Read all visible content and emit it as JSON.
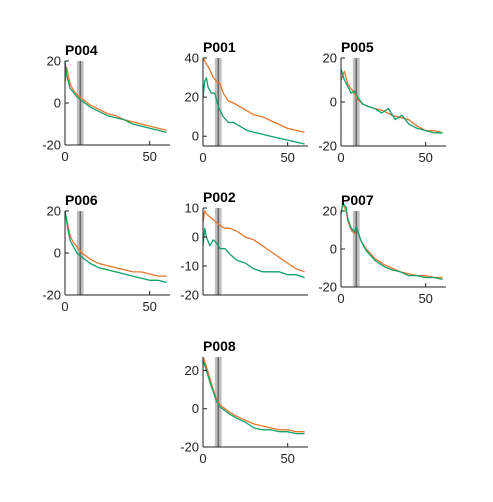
{
  "colors": {
    "series_a": "#E8772E",
    "series_b": "#0EA06A",
    "shade": "#B3B3B3",
    "center_line": "#555555"
  },
  "chart_data": [
    {
      "type": "line",
      "title": "P004",
      "xlim": [
        0,
        62
      ],
      "ylim": [
        -20,
        20
      ],
      "xticks": [
        0,
        50
      ],
      "yticks": [
        -20,
        0,
        20
      ],
      "shade": [
        7,
        11
      ],
      "center": 9,
      "series": [
        {
          "values": [
            [
              0,
              10
            ],
            [
              1,
              17
            ],
            [
              2,
              13
            ],
            [
              3,
              9
            ],
            [
              5,
              6
            ],
            [
              7,
              4
            ],
            [
              10,
              2
            ],
            [
              15,
              -1
            ],
            [
              20,
              -3
            ],
            [
              25,
              -5
            ],
            [
              30,
              -6
            ],
            [
              35,
              -8
            ],
            [
              40,
              -9
            ],
            [
              45,
              -10
            ],
            [
              50,
              -11
            ],
            [
              55,
              -12
            ],
            [
              60,
              -13
            ]
          ]
        },
        {
          "values": [
            [
              0,
              20
            ],
            [
              1,
              13
            ],
            [
              2,
              10
            ],
            [
              3,
              7
            ],
            [
              5,
              5
            ],
            [
              7,
              3
            ],
            [
              10,
              1
            ],
            [
              15,
              -2
            ],
            [
              20,
              -4
            ],
            [
              25,
              -6
            ],
            [
              30,
              -7
            ],
            [
              35,
              -8
            ],
            [
              40,
              -10
            ],
            [
              45,
              -11
            ],
            [
              50,
              -12
            ],
            [
              55,
              -13
            ],
            [
              60,
              -14
            ]
          ]
        }
      ]
    },
    {
      "type": "line",
      "title": "P001",
      "xlim": [
        0,
        62
      ],
      "ylim": [
        -5,
        40
      ],
      "xticks": [
        0,
        50
      ],
      "yticks": [
        0,
        20,
        40
      ],
      "shade": [
        7,
        11
      ],
      "center": 9,
      "series": [
        {
          "values": [
            [
              0,
              40
            ],
            [
              2,
              37
            ],
            [
              4,
              34
            ],
            [
              6,
              30
            ],
            [
              8,
              28
            ],
            [
              10,
              27
            ],
            [
              12,
              22
            ],
            [
              15,
              18
            ],
            [
              18,
              17
            ],
            [
              22,
              15
            ],
            [
              26,
              13
            ],
            [
              30,
              11
            ],
            [
              35,
              10
            ],
            [
              40,
              8
            ],
            [
              45,
              6
            ],
            [
              50,
              4
            ],
            [
              55,
              3
            ],
            [
              60,
              2
            ]
          ]
        },
        {
          "values": [
            [
              0,
              20
            ],
            [
              1,
              28
            ],
            [
              2,
              30
            ],
            [
              3,
              25
            ],
            [
              5,
              22
            ],
            [
              7,
              22
            ],
            [
              9,
              15
            ],
            [
              12,
              10
            ],
            [
              15,
              7
            ],
            [
              18,
              7
            ],
            [
              22,
              5
            ],
            [
              26,
              3
            ],
            [
              30,
              2
            ],
            [
              35,
              1
            ],
            [
              40,
              0
            ],
            [
              45,
              -1
            ],
            [
              50,
              -2
            ],
            [
              55,
              -3
            ],
            [
              60,
              -4
            ]
          ]
        }
      ]
    },
    {
      "type": "line",
      "title": "P005",
      "xlim": [
        0,
        62
      ],
      "ylim": [
        -20,
        20
      ],
      "xticks": [
        0,
        50
      ],
      "yticks": [
        -20,
        0,
        20
      ],
      "shade": [
        7,
        11
      ],
      "center": 9,
      "series": [
        {
          "values": [
            [
              0,
              10
            ],
            [
              2,
              14
            ],
            [
              4,
              8
            ],
            [
              6,
              6
            ],
            [
              8,
              4
            ],
            [
              10,
              1
            ],
            [
              13,
              -1
            ],
            [
              16,
              -2
            ],
            [
              20,
              -3
            ],
            [
              25,
              -4
            ],
            [
              30,
              -6
            ],
            [
              35,
              -7
            ],
            [
              40,
              -8
            ],
            [
              45,
              -11
            ],
            [
              50,
              -13
            ],
            [
              55,
              -13
            ],
            [
              60,
              -14
            ]
          ]
        },
        {
          "values": [
            [
              0,
              15
            ],
            [
              2,
              10
            ],
            [
              4,
              7
            ],
            [
              6,
              4
            ],
            [
              8,
              5
            ],
            [
              10,
              2
            ],
            [
              13,
              -1
            ],
            [
              16,
              -2
            ],
            [
              20,
              -3
            ],
            [
              24,
              -5
            ],
            [
              28,
              -3
            ],
            [
              32,
              -8
            ],
            [
              36,
              -6
            ],
            [
              40,
              -10
            ],
            [
              45,
              -12
            ],
            [
              50,
              -13
            ],
            [
              55,
              -14
            ],
            [
              60,
              -14
            ]
          ]
        }
      ]
    },
    {
      "type": "line",
      "title": "P006",
      "xlim": [
        0,
        62
      ],
      "ylim": [
        -20,
        20
      ],
      "xticks": [
        0,
        50
      ],
      "yticks": [
        -20,
        0,
        20
      ],
      "shade": [
        7,
        11
      ],
      "center": 9,
      "series": [
        {
          "values": [
            [
              0,
              20
            ],
            [
              1,
              16
            ],
            [
              2,
              12
            ],
            [
              3,
              8
            ],
            [
              5,
              5
            ],
            [
              7,
              3
            ],
            [
              10,
              0
            ],
            [
              15,
              -3
            ],
            [
              20,
              -5
            ],
            [
              25,
              -6
            ],
            [
              30,
              -7
            ],
            [
              35,
              -8
            ],
            [
              40,
              -9
            ],
            [
              45,
              -9
            ],
            [
              50,
              -10
            ],
            [
              55,
              -11
            ],
            [
              60,
              -11
            ]
          ]
        },
        {
          "values": [
            [
              0,
              20
            ],
            [
              1,
              15
            ],
            [
              2,
              10
            ],
            [
              3,
              6
            ],
            [
              5,
              3
            ],
            [
              7,
              0
            ],
            [
              10,
              -2
            ],
            [
              15,
              -5
            ],
            [
              20,
              -7
            ],
            [
              25,
              -8
            ],
            [
              30,
              -9
            ],
            [
              35,
              -10
            ],
            [
              40,
              -11
            ],
            [
              45,
              -12
            ],
            [
              50,
              -13
            ],
            [
              55,
              -13
            ],
            [
              60,
              -14
            ]
          ]
        }
      ]
    },
    {
      "type": "line",
      "title": "P002",
      "xlim": [
        0,
        62
      ],
      "ylim": [
        -20,
        10
      ],
      "xticks": [],
      "yticks": [
        -20,
        -10,
        0,
        10
      ],
      "shade": [
        7,
        11
      ],
      "center": 9,
      "series": [
        {
          "values": [
            [
              0,
              5
            ],
            [
              1,
              9
            ],
            [
              2,
              8
            ],
            [
              4,
              7
            ],
            [
              6,
              6
            ],
            [
              8,
              5
            ],
            [
              10,
              4
            ],
            [
              13,
              3
            ],
            [
              16,
              3
            ],
            [
              20,
              2
            ],
            [
              25,
              0
            ],
            [
              30,
              -1
            ],
            [
              35,
              -3
            ],
            [
              40,
              -5
            ],
            [
              45,
              -7
            ],
            [
              50,
              -9
            ],
            [
              55,
              -11
            ],
            [
              60,
              -12
            ]
          ]
        },
        {
          "values": [
            [
              0,
              -3
            ],
            [
              1,
              3
            ],
            [
              2,
              0
            ],
            [
              4,
              -3
            ],
            [
              6,
              -1
            ],
            [
              8,
              -2
            ],
            [
              10,
              -4
            ],
            [
              13,
              -4
            ],
            [
              16,
              -6
            ],
            [
              20,
              -8
            ],
            [
              25,
              -9
            ],
            [
              30,
              -11
            ],
            [
              35,
              -12
            ],
            [
              40,
              -12
            ],
            [
              45,
              -12
            ],
            [
              50,
              -13
            ],
            [
              55,
              -13
            ],
            [
              60,
              -14
            ]
          ]
        }
      ]
    },
    {
      "type": "line",
      "title": "P007",
      "xlim": [
        0,
        62
      ],
      "ylim": [
        -20,
        20
      ],
      "xticks": [
        0,
        50
      ],
      "yticks": [
        -20,
        0,
        20
      ],
      "shade": [
        7,
        11
      ],
      "center": 9,
      "series": [
        {
          "values": [
            [
              0,
              20
            ],
            [
              1,
              23
            ],
            [
              2,
              22
            ],
            [
              3,
              20
            ],
            [
              4,
              15
            ],
            [
              6,
              10
            ],
            [
              8,
              8
            ],
            [
              9,
              12
            ],
            [
              10,
              9
            ],
            [
              12,
              4
            ],
            [
              15,
              0
            ],
            [
              20,
              -5
            ],
            [
              25,
              -8
            ],
            [
              30,
              -10
            ],
            [
              35,
              -12
            ],
            [
              40,
              -13
            ],
            [
              45,
              -14
            ],
            [
              50,
              -14
            ],
            [
              55,
              -15
            ],
            [
              60,
              -15
            ]
          ]
        },
        {
          "values": [
            [
              0,
              18
            ],
            [
              1,
              24
            ],
            [
              2,
              23
            ],
            [
              3,
              22
            ],
            [
              4,
              16
            ],
            [
              6,
              11
            ],
            [
              8,
              9
            ],
            [
              9,
              12
            ],
            [
              10,
              9
            ],
            [
              12,
              4
            ],
            [
              15,
              -1
            ],
            [
              20,
              -6
            ],
            [
              25,
              -9
            ],
            [
              30,
              -11
            ],
            [
              35,
              -12
            ],
            [
              40,
              -14
            ],
            [
              45,
              -14
            ],
            [
              50,
              -15
            ],
            [
              55,
              -15
            ],
            [
              60,
              -16
            ]
          ]
        }
      ]
    },
    {
      "type": "line",
      "title": "P008",
      "xlim": [
        0,
        62
      ],
      "ylim": [
        -20,
        27
      ],
      "xticks": [
        0,
        50
      ],
      "yticks": [
        -20,
        0,
        20
      ],
      "shade": [
        7,
        11
      ],
      "center": 9,
      "series": [
        {
          "values": [
            [
              0,
              27
            ],
            [
              2,
              22
            ],
            [
              4,
              16
            ],
            [
              6,
              10
            ],
            [
              8,
              5
            ],
            [
              10,
              2
            ],
            [
              13,
              0
            ],
            [
              16,
              -2
            ],
            [
              20,
              -4
            ],
            [
              25,
              -6
            ],
            [
              30,
              -8
            ],
            [
              35,
              -9
            ],
            [
              40,
              -10
            ],
            [
              45,
              -11
            ],
            [
              50,
              -11
            ],
            [
              55,
              -12
            ],
            [
              60,
              -12
            ]
          ]
        },
        {
          "values": [
            [
              0,
              25
            ],
            [
              2,
              20
            ],
            [
              4,
              14
            ],
            [
              6,
              9
            ],
            [
              8,
              4
            ],
            [
              10,
              1
            ],
            [
              13,
              -1
            ],
            [
              16,
              -3
            ],
            [
              20,
              -5
            ],
            [
              25,
              -7
            ],
            [
              30,
              -10
            ],
            [
              35,
              -11
            ],
            [
              40,
              -11
            ],
            [
              45,
              -12
            ],
            [
              50,
              -12
            ],
            [
              55,
              -13
            ],
            [
              60,
              -13
            ]
          ]
        }
      ]
    }
  ]
}
